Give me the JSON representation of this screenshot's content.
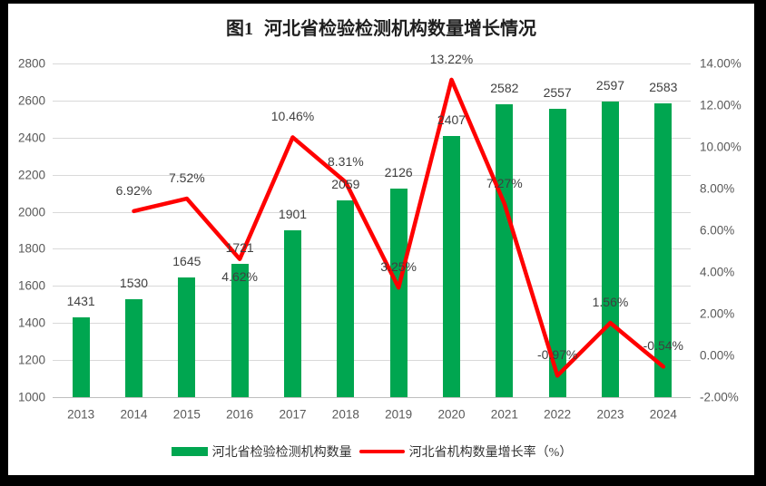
{
  "title": "图1 河北省检验检测机构数量增长情况",
  "chart_data": {
    "type": "combo-bar-line",
    "title": "图1 河北省检验检测机构数量增长情况",
    "categories": [
      "2013",
      "2014",
      "2015",
      "2016",
      "2017",
      "2018",
      "2019",
      "2020",
      "2021",
      "2022",
      "2023",
      "2024"
    ],
    "series": [
      {
        "name": "河北省检验检测机构数量",
        "type": "bar",
        "axis": "left",
        "color": "#00A650",
        "values": [
          1431,
          1530,
          1645,
          1721,
          1901,
          2059,
          2126,
          2407,
          2582,
          2557,
          2597,
          2583
        ],
        "data_labels": [
          "1431",
          "1530",
          "1645",
          "1721",
          "1901",
          "2059",
          "2126",
          "2407",
          "2582",
          "2557",
          "2597",
          "2583"
        ]
      },
      {
        "name": "河北省机构数量增长率（%）",
        "type": "line",
        "axis": "right",
        "color": "#FF0000",
        "values": [
          null,
          6.92,
          7.52,
          4.62,
          10.46,
          8.31,
          3.25,
          13.22,
          7.27,
          -0.97,
          1.56,
          -0.54
        ],
        "data_labels": [
          null,
          "6.92%",
          "7.52%",
          "4.62%",
          "10.46%",
          "8.31%",
          "3.25%",
          "13.22%",
          "7.27%",
          "-0.97%",
          "1.56%",
          "-0.54%"
        ],
        "label_placement": [
          null,
          "above",
          "above",
          "below",
          "above",
          "above",
          "above",
          "above",
          "above",
          "above",
          "above",
          "above"
        ]
      }
    ],
    "left_axis": {
      "min": 1000,
      "max": 2800,
      "step": 200,
      "ticks": [
        "2800",
        "2600",
        "2400",
        "2200",
        "2000",
        "1800",
        "1600",
        "1400",
        "1200",
        "1000"
      ]
    },
    "right_axis": {
      "min": -2,
      "max": 14,
      "step": 2,
      "ticks": [
        "14.00%",
        "12.00%",
        "10.00%",
        "8.00%",
        "6.00%",
        "4.00%",
        "2.00%",
        "0.00%",
        "-2.00%"
      ]
    },
    "grid": true,
    "legend_position": "bottom"
  },
  "legend": {
    "items": [
      {
        "label": "河北省检验检测机构数量",
        "marker": "bar-swatch",
        "color": "#00A650"
      },
      {
        "label": "河北省机构数量增长率（%）",
        "marker": "line-swatch",
        "color": "#FF0000"
      }
    ]
  },
  "colors": {
    "bar_green": "#00A650",
    "line_red": "#FF0000",
    "gridline": "#D9D9D9",
    "axis_line": "#BFBFBF",
    "axis_text": "#595959",
    "data_label_text": "#3F3F3F",
    "title_text": "#1F1F1F",
    "legend_text": "#333333",
    "frame": "#000000",
    "chart_bg": "#FFFFFF"
  }
}
